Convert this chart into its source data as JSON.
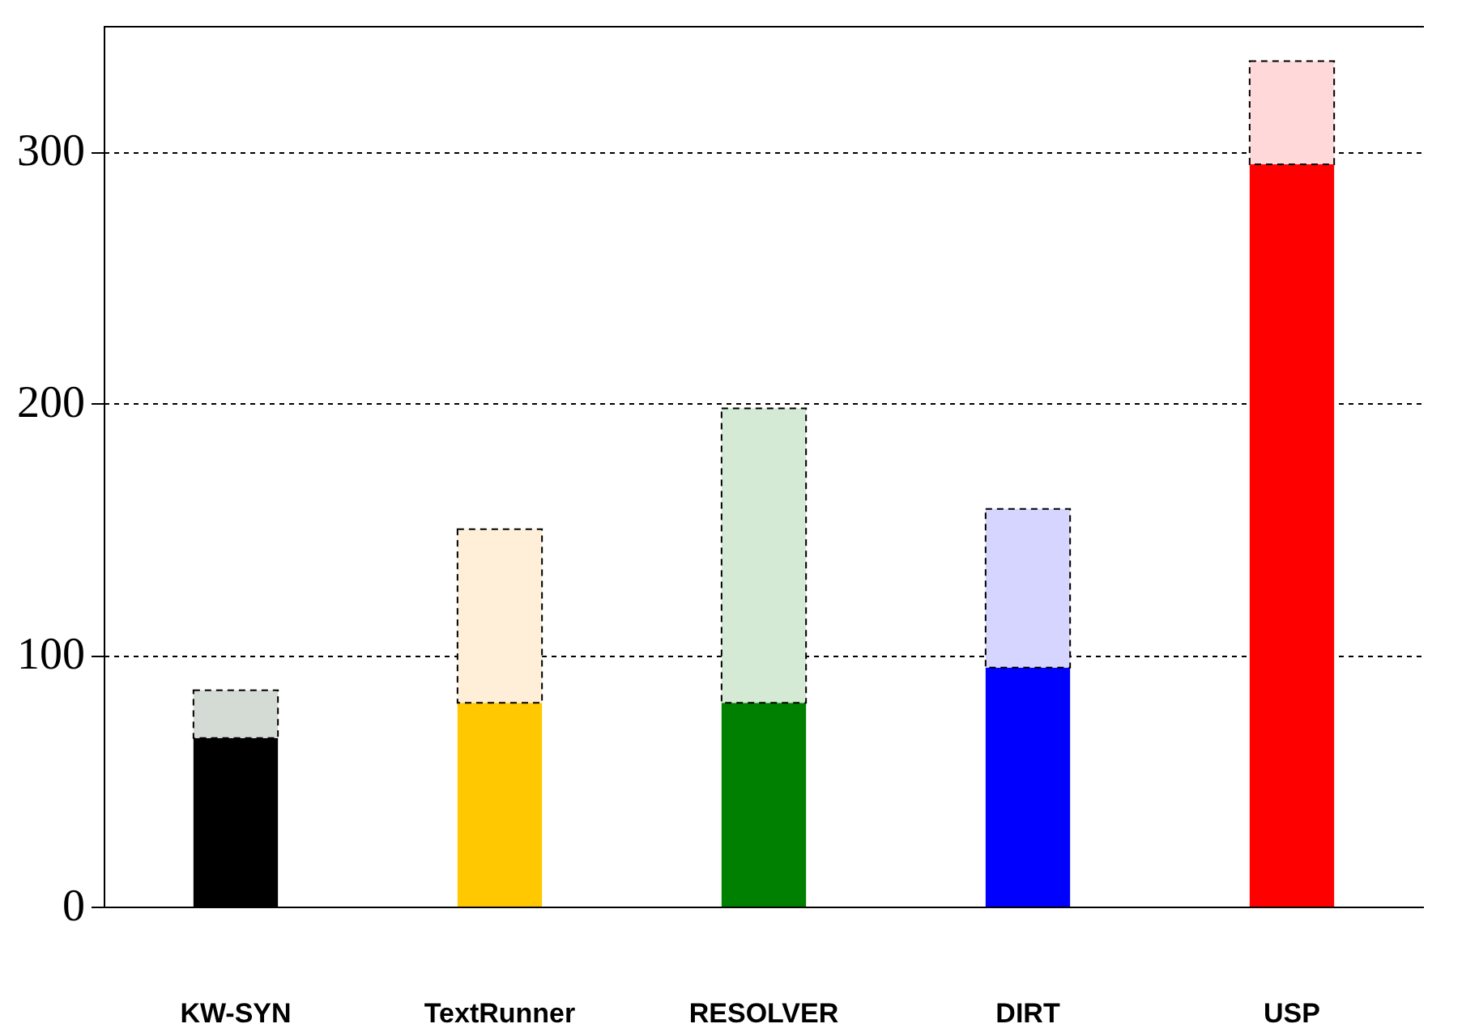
{
  "chart_data": {
    "type": "bar",
    "stacked": true,
    "categories": [
      "KW-SYN",
      "TextRunner",
      "RESOLVER",
      "DIRT",
      "USP"
    ],
    "series": [
      {
        "colors": [
          "#000000",
          "#ffc800",
          "#008000",
          "#0000ff",
          "#ff0000"
        ],
        "values": [
          67,
          81,
          81,
          95,
          295
        ]
      },
      {
        "colors": [
          "#d4dad4",
          "#ffeed8",
          "#d5ead5",
          "#d5d5ff",
          "#ffd9d9"
        ],
        "values": [
          19,
          69,
          117,
          63,
          41
        ],
        "line_style": "dashed"
      }
    ],
    "ylim": [
      0,
      350
    ],
    "yticks": [
      0,
      100,
      200,
      300
    ],
    "grid": "y"
  }
}
